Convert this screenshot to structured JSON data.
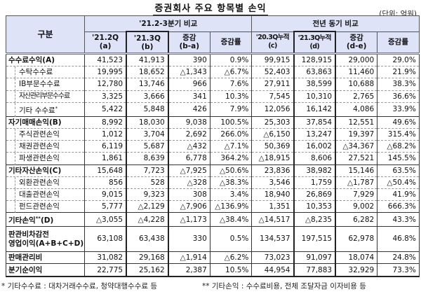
{
  "title": "증권회사 주요 항목별 손익",
  "unit": "(단위: 억원)",
  "header": {
    "category": "구분",
    "group1": "'21.2-3분기 비교",
    "group2": "전년 동기 비교",
    "cols": [
      {
        "line1": "'21.2Q",
        "line2": "(a)"
      },
      {
        "line1": "'21.3Q",
        "line2": "(b)"
      },
      {
        "line1": "증감",
        "line2": "(b-a)"
      },
      {
        "line1": "증감률",
        "line2": ""
      },
      {
        "line1": "'20.3Q누적",
        "line2": "(c)"
      },
      {
        "line1": "'21.3Q누적",
        "line2": "(d)"
      },
      {
        "line1": "증감",
        "line2": "(d-e)"
      },
      {
        "line1": "증감률",
        "line2": ""
      }
    ]
  },
  "rows": [
    {
      "label": "수수료수익(A)",
      "level": "main",
      "values": [
        "41,523",
        "41,913",
        "390",
        "0.9%",
        "99,915",
        "128,915",
        "29,000",
        "29.0%"
      ]
    },
    {
      "label": "수탁수수료",
      "level": "sub",
      "values": [
        "19,995",
        "18,652",
        "△1,343",
        "△6.7%",
        "52,403",
        "63,863",
        "11,460",
        "21.9%"
      ]
    },
    {
      "label": "IB부문수수료",
      "level": "sub",
      "values": [
        "12,780",
        "13,746",
        "966",
        "7.6%",
        "27,911",
        "38,599",
        "10,688",
        "38.3%"
      ]
    },
    {
      "label": "자산관리부문수수료",
      "level": "sub",
      "values": [
        "3,325",
        "3,666",
        "341",
        "10.3%",
        "7,545",
        "10,310",
        "2,765",
        "36.6%"
      ]
    },
    {
      "label": "기타 수수료",
      "note": "*",
      "level": "sub",
      "values": [
        "5,422",
        "5,848",
        "426",
        "7.9%",
        "12,056",
        "16,142",
        "4,086",
        "33.9%"
      ]
    },
    {
      "label": "자기매매손익(B)",
      "level": "main",
      "values": [
        "8,992",
        "18,030",
        "9,038",
        "100.5%",
        "25,303",
        "37,854",
        "12,551",
        "49.6%"
      ]
    },
    {
      "label": "주식관련손익",
      "level": "sub",
      "values": [
        "1,012",
        "3,704",
        "2,692",
        "266.0%",
        "△6,150",
        "13,247",
        "19,397",
        "315.4%"
      ]
    },
    {
      "label": "채권관련손익",
      "level": "sub",
      "values": [
        "6,119",
        "5,687",
        "△432",
        "△7.1%",
        "50,369",
        "16,002",
        "△34,367",
        "△68.2%"
      ]
    },
    {
      "label": "파생관련손익",
      "level": "sub",
      "values": [
        "1,861",
        "8,639",
        "6,778",
        "364.2%",
        "△18,915",
        "8,606",
        "27,521",
        "145.5%"
      ]
    },
    {
      "label": "기타자산손익(C)",
      "level": "main",
      "values": [
        "15,648",
        "7,723",
        "△7,925",
        "△50.6%",
        "23,836",
        "38,982",
        "15,146",
        "63.5%"
      ]
    },
    {
      "label": "외환관련손익",
      "level": "sub",
      "values": [
        "856",
        "528",
        "△328",
        "△38.3%",
        "3,546",
        "1,759",
        "△1,787",
        "△50.4%"
      ]
    },
    {
      "label": "대출관련손익",
      "level": "sub",
      "values": [
        "9,015",
        "9,323",
        "308",
        "3.4%",
        "18,940",
        "26,869",
        "7,929",
        "41.9%"
      ]
    },
    {
      "label": "펀드관련손익",
      "level": "sub",
      "values": [
        "5,777",
        "△2,129",
        "△7,906",
        "△136.9%",
        "1,351",
        "10,353",
        "9,002",
        "666.3%"
      ]
    },
    {
      "label": "기타손익",
      "note": "**",
      "suffix": "(D)",
      "level": "main",
      "values": [
        "△3,055",
        "△4,228",
        "△1,173",
        "△38.4%",
        "△14,517",
        "△8,235",
        "6,282",
        "43.3%"
      ]
    },
    {
      "label": "판관비차감전",
      "label2": "영업이익(A+B+C+D)",
      "level": "main-tall",
      "values": [
        "63,108",
        "63,438",
        "330",
        "0.5%",
        "134,537",
        "197,515",
        "62,978",
        "46.8%"
      ]
    },
    {
      "label": "판매관리비",
      "level": "main",
      "values": [
        "31,082",
        "29,168",
        "△1,914",
        "△6.2%",
        "73,023",
        "91,097",
        "18,074",
        "24.8%"
      ]
    },
    {
      "label": "분기순이익",
      "level": "main-last",
      "values": [
        "22,775",
        "25,162",
        "2,387",
        "10.5%",
        "44,954",
        "77,883",
        "32,929",
        "73.3%"
      ]
    }
  ],
  "footnotes": {
    "note1": "* 기타수수료 : 대차거래수수료, 청약대행수수료 등",
    "note2": "** 기타손익 : 수수료비용, 전체 조달자금 이자비용 등"
  },
  "colors": {
    "header_bg": "#dfe3f7",
    "border": "#333333"
  }
}
